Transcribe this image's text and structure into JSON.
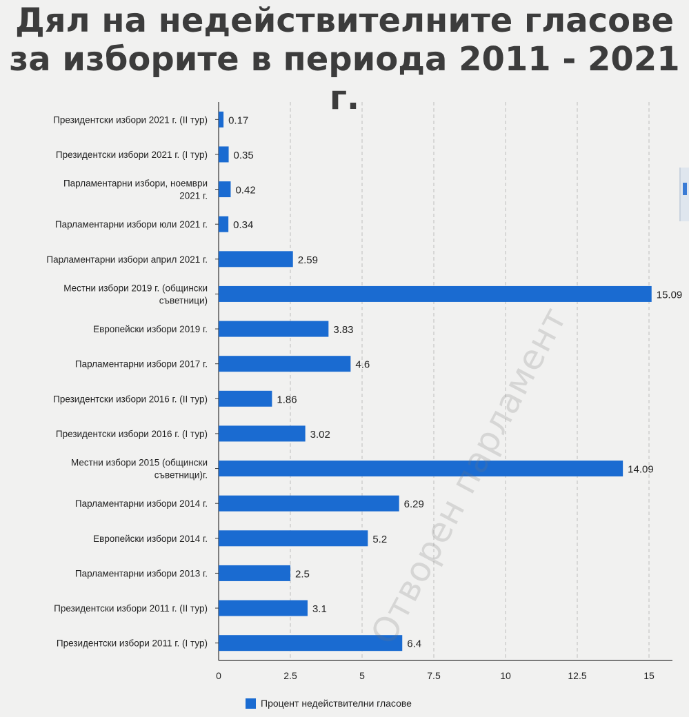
{
  "title": {
    "line1": "Дял на недействителните гласове",
    "line2": "за изборите в периода 2011 - 2021 г."
  },
  "watermark": "Отворен парламент",
  "colors": {
    "bar": "#1a6bd1",
    "background": "#f1f1f0",
    "grid": "#bdbdbd"
  },
  "chart_data": {
    "type": "bar",
    "orientation": "horizontal",
    "categories": [
      [
        "Президентски избори 2021 г. (II тур)"
      ],
      [
        "Президентски избори 2021 г. (I тур)"
      ],
      [
        "Парламентарни избори, ноември",
        "2021 г."
      ],
      [
        "Парламентарни избори юли 2021 г."
      ],
      [
        "Парламентарни избори април 2021 г."
      ],
      [
        "Местни избори 2019 г. (общински",
        "съветници)"
      ],
      [
        "Европейски избори 2019 г."
      ],
      [
        "Парламентарни избори 2017 г."
      ],
      [
        "Президентски избори 2016 г. (II тур)"
      ],
      [
        "Президентски избори 2016 г. (I тур)"
      ],
      [
        "Местни избори 2015 (общински",
        "съветници)г."
      ],
      [
        "Парламентарни избори 2014 г."
      ],
      [
        "Европейски избори 2014 г."
      ],
      [
        "Парламентарни избори 2013 г."
      ],
      [
        "Президентски избори 2011 г. (II тур)"
      ],
      [
        "Президентски избори 2011 г. (I тур)"
      ]
    ],
    "values": [
      0.17,
      0.35,
      0.42,
      0.34,
      2.59,
      15.09,
      3.83,
      4.6,
      1.86,
      3.02,
      14.09,
      6.29,
      5.2,
      2.5,
      3.1,
      6.4
    ],
    "value_labels": [
      "0.17",
      "0.35",
      "0.42",
      "0.34",
      "2.59",
      "15.09",
      "3.83",
      "4.6",
      "1.86",
      "3.02",
      "14.09",
      "6.29",
      "5.2",
      "2.5",
      "3.1",
      "6.4"
    ],
    "xlim": [
      0,
      15
    ],
    "xticks": [
      "0",
      "2.5",
      "5",
      "7.5",
      "10",
      "12.5",
      "15"
    ],
    "grid": "vertical-dashed",
    "legend": {
      "label": "Процент недействителни гласове",
      "placement": "bottom-center"
    }
  }
}
